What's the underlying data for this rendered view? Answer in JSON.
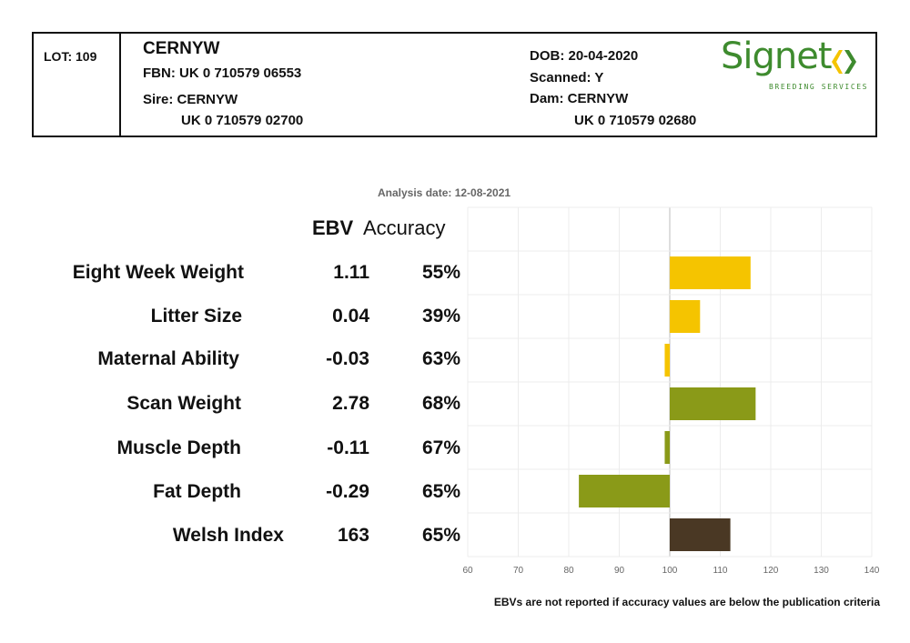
{
  "header": {
    "lot": "LOT: 109",
    "name": "CERNYW",
    "fbn": "FBN: UK 0 710579 06553",
    "sire_label": "Sire: CERNYW",
    "sire_id": "UK 0 710579 02700",
    "dob": "DOB: 20-04-2020",
    "scanned": "Scanned: Y",
    "dam_label": "Dam: CERNYW",
    "dam_id": "UK 0 710579 02680"
  },
  "logo": {
    "word": "Signet",
    "sub": "BREEDING SERVICES",
    "colors": {
      "green": "#3e8b2e",
      "yellow": "#f5c400"
    }
  },
  "analysis_date": "Analysis date: 12-08-2021",
  "columns": {
    "ebv": "EBV",
    "accuracy": "Accuracy"
  },
  "traits": [
    {
      "name": "Eight Week Weight",
      "ebv": "1.11",
      "accuracy": "55%"
    },
    {
      "name": "Litter Size",
      "ebv": "0.04",
      "accuracy": "39%"
    },
    {
      "name": "Maternal Ability",
      "ebv": "-0.03",
      "accuracy": "63%"
    },
    {
      "name": "Scan Weight",
      "ebv": "2.78",
      "accuracy": "68%"
    },
    {
      "name": "Muscle Depth",
      "ebv": "-0.11",
      "accuracy": "67%"
    },
    {
      "name": "Fat Depth",
      "ebv": "-0.29",
      "accuracy": "65%"
    },
    {
      "name": "Welsh Index",
      "ebv": "163",
      "accuracy": "65%"
    }
  ],
  "footnote": "EBVs are not reported if accuracy values are below the publication criteria",
  "chart_data": {
    "type": "bar",
    "orientation": "horizontal",
    "categories": [
      "Eight Week Weight",
      "Litter Size",
      "Maternal Ability",
      "Scan Weight",
      "Muscle Depth",
      "Fat Depth",
      "Welsh Index"
    ],
    "values": [
      116,
      106,
      99,
      117,
      99,
      82,
      112
    ],
    "baseline": 100,
    "xlim": [
      60,
      140
    ],
    "xticks": [
      60,
      70,
      80,
      90,
      100,
      110,
      120,
      130,
      140
    ],
    "grid": true,
    "bar_colors": [
      "#f5c400",
      "#f5c400",
      "#f5c400",
      "#8a9a18",
      "#8a9a18",
      "#8a9a18",
      "#4a3824"
    ]
  }
}
